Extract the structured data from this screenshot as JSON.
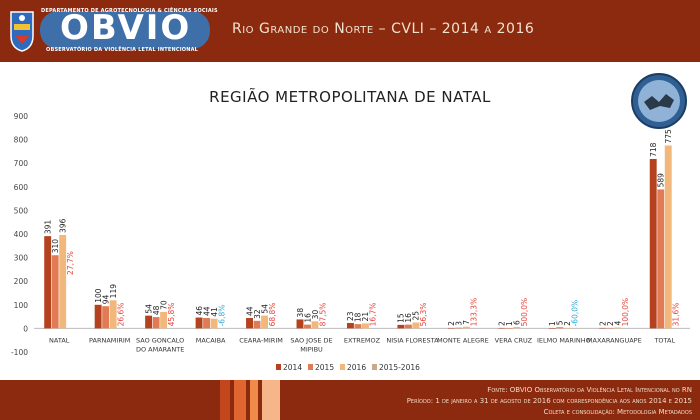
{
  "header": {
    "logo_dept": "DEPARTAMENTO DE AGROTECNOLOGIA & CIÊNCIAS SOCIAIS",
    "logo_name": "OBVIO",
    "logo_sub": "OBSERVATÓRIO DA VIOLÊNCIA LETAL INTENCIONAL",
    "title": "Rio Grande do Norte – CVLI – 2014 a 2016"
  },
  "colors": {
    "header_bg": "#8c2a0f",
    "s2014": "#b5421e",
    "s2015": "#e07b54",
    "s2016": "#f2b77a",
    "pct": "#e8423a",
    "pct_neg": "#2aa8d8"
  },
  "chart_data": {
    "type": "bar",
    "title": "REGIÃO METROPOLITANA DE NATAL",
    "categories": [
      "NATAL",
      "PARNAMIRIM",
      "SAO GONCALO DO AMARANTE",
      "MACAIBA",
      "CEARA-MIRIM",
      "SAO JOSE DE MIPIBU",
      "EXTREMOZ",
      "NISIA FLORESTA",
      "MONTE ALEGRE",
      "VERA CRUZ",
      "IELMO MARINHO",
      "MAXARANGUAPE",
      "TOTAL"
    ],
    "category_lines": [
      [
        "NATAL"
      ],
      [
        "PARNAMIRIM"
      ],
      [
        "SAO GONCALO",
        "DO AMARANTE"
      ],
      [
        "MACAIBA"
      ],
      [
        "CEARA-MIRIM"
      ],
      [
        "SAO JOSE DE",
        "MIPIBU"
      ],
      [
        "EXTREMOZ"
      ],
      [
        "NISIA FLORESTA"
      ],
      [
        "MONTE ALEGRE"
      ],
      [
        "VERA CRUZ"
      ],
      [
        "IELMO MARINHO"
      ],
      [
        "MAXARANGUAPE"
      ],
      [
        "TOTAL"
      ]
    ],
    "series": [
      {
        "name": "2014",
        "values": [
          391,
          100,
          54,
          46,
          44,
          38,
          23,
          15,
          2,
          2,
          1,
          2,
          718
        ]
      },
      {
        "name": "2015",
        "values": [
          310,
          94,
          48,
          44,
          32,
          16,
          18,
          16,
          3,
          1,
          5,
          2,
          589
        ]
      },
      {
        "name": "2016",
        "values": [
          396,
          119,
          70,
          41,
          54,
          30,
          21,
          25,
          7,
          6,
          2,
          4,
          775
        ]
      }
    ],
    "pct_labels": [
      "27,7%",
      "26,6%",
      "45,8%",
      "-6,8%",
      "68,8%",
      "87,5%",
      "16,7%",
      "56,3%",
      "133,3%",
      "500,0%",
      "-60,0%",
      "100,0%",
      "31,6%"
    ],
    "pct_values": [
      27.7,
      26.6,
      45.8,
      -6.8,
      68.8,
      87.5,
      16.7,
      56.3,
      133.3,
      500.0,
      -60.0,
      100.0,
      31.6
    ],
    "legend": [
      "2014",
      "2015",
      "2016",
      "2015-2016"
    ],
    "ylim": [
      -100,
      900
    ],
    "yticks": [
      -100,
      0,
      100,
      200,
      300,
      400,
      500,
      600,
      700,
      800,
      900
    ],
    "xlabel": "",
    "ylabel": "",
    "grid": false,
    "legend_position": "bottom"
  },
  "footer": {
    "source": "Fonte: OBVIO Observatório da Violência Letal Intencional no RN",
    "period": "Período: 1 de janeiro a 31 de agosto de 2016 com correspondência aos anos 2014 e 2015",
    "credits": "Coleta e consolidação: Metodologia Metadados"
  }
}
